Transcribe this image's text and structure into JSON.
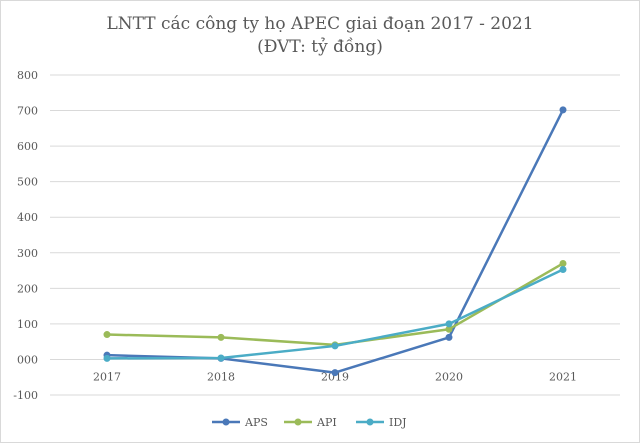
{
  "chart_data": {
    "type": "line",
    "title": "LNTT các công ty họ APEC giai đoạn 2017 - 2021",
    "subtitle": "(ĐVT: tỷ đồng)",
    "categories": [
      "2017",
      "2018",
      "2019",
      "2020",
      "2021"
    ],
    "yticks": [
      "800",
      "700",
      "600",
      "500",
      "400",
      "300",
      "200",
      "100",
      "000",
      "-100"
    ],
    "ylim": [
      -100,
      800
    ],
    "grid": "horizontal",
    "legend_position": "bottom",
    "series": [
      {
        "name": "APS",
        "color": "#4a78b8",
        "values": [
          12,
          3,
          -37,
          62,
          702
        ]
      },
      {
        "name": "API",
        "color": "#9bbb59",
        "values": [
          70,
          62,
          41,
          85,
          270
        ]
      },
      {
        "name": "IDJ",
        "color": "#4bacc6",
        "values": [
          3,
          4,
          38,
          100,
          253
        ]
      }
    ]
  }
}
